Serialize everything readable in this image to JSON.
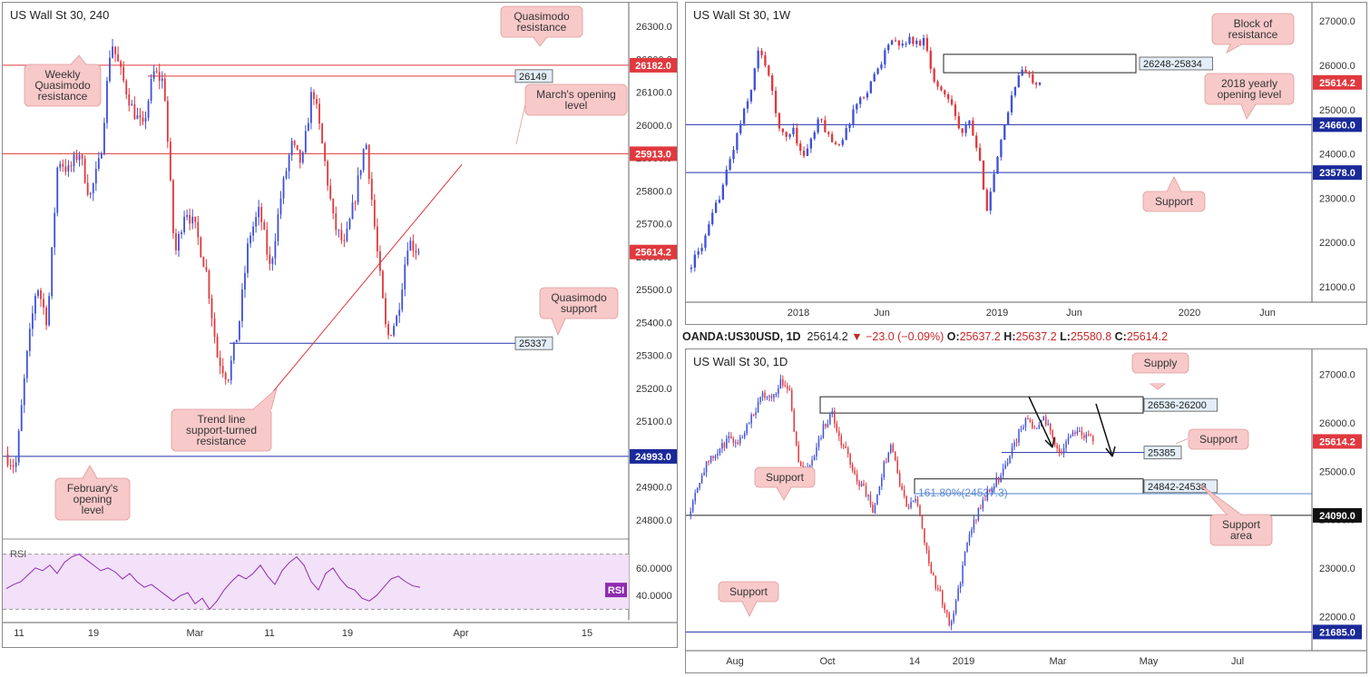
{
  "colors": {
    "up": "#3f51d8",
    "down": "#e0393e",
    "red_line": "#e0393e",
    "blue_line": "#2233aa",
    "callout_bg": "#f8c9c9",
    "callout_border": "#e09a9a",
    "rsi_bg": "#f2e1f8",
    "rsi_line": "#8e2bb0",
    "rsi_badge": "#8e2bb0"
  },
  "header": {
    "symbol": "OANDA:US30USD, 1D",
    "price": "25614.2",
    "change": "−23.0 (−0.09%)",
    "o_label": "O:",
    "o_val": "25637.2",
    "h_label": "H:",
    "h_val": "25637.2",
    "l_label": "L:",
    "l_val": "25580.8",
    "c_label": "C:",
    "c_val": "25614.2"
  },
  "chart_data": [
    {
      "type": "candlestick",
      "title": "US Wall St 30, 240",
      "ylim": [
        24750,
        26350
      ],
      "y_ticks": [
        "26300.0",
        "26200.0",
        "26100.0",
        "26000.0",
        "25900.0",
        "25800.0",
        "25700.0",
        "25600.0",
        "25500.0",
        "25400.0",
        "25300.0",
        "25200.0",
        "25100.0",
        "25000.0",
        "24900.0",
        "24800.0"
      ],
      "x_ticks": [
        "11",
        "19",
        "Mar",
        "11",
        "19",
        "Apr",
        "15"
      ],
      "path": [
        25000,
        24960,
        25280,
        25520,
        25400,
        25900,
        25860,
        25920,
        25780,
        25900,
        26260,
        26150,
        26050,
        25990,
        26160,
        26130,
        25600,
        25750,
        25680,
        25550,
        25300,
        25230,
        25380,
        25660,
        25740,
        25560,
        25780,
        25940,
        25880,
        26120,
        25920,
        25700,
        25630,
        25780,
        25960,
        25640,
        25350,
        25420,
        25650,
        25614
      ],
      "last_price": "25614.2",
      "hlines": [
        {
          "label": "26182.0",
          "value": 26182,
          "style": "red-badge"
        },
        {
          "label": "26149",
          "value": 26149,
          "style": "blue-tag"
        },
        {
          "label": "25913.0",
          "value": 25913,
          "style": "red-badge"
        },
        {
          "label": "25337",
          "value": 25337,
          "style": "blue-tag"
        },
        {
          "label": "24993.0",
          "value": 24993,
          "style": "blue-badge"
        }
      ],
      "annotations": [
        {
          "text": [
            "Quasimodo",
            "resistance"
          ]
        },
        {
          "text": [
            "Weekly",
            "Quasimodo",
            "resistance"
          ]
        },
        {
          "text": [
            "March's opening",
            "level"
          ]
        },
        {
          "text": [
            "Quasimodo",
            "support"
          ]
        },
        {
          "text": [
            "Trend line",
            "support-turned",
            "resistance"
          ]
        },
        {
          "text": [
            "February's",
            "opening",
            "level"
          ]
        }
      ],
      "rsi": {
        "label": "RSI",
        "ylim": [
          25,
          75
        ],
        "y_ticks": [
          "60.0000",
          "40.0000"
        ],
        "band": [
          30,
          70
        ],
        "values": [
          45,
          48,
          50,
          55,
          60,
          58,
          62,
          56,
          64,
          68,
          70,
          66,
          62,
          58,
          60,
          57,
          52,
          56,
          50,
          46,
          48,
          44,
          40,
          36,
          40,
          42,
          34,
          38,
          30,
          36,
          44,
          50,
          55,
          52,
          56,
          62,
          54,
          48,
          58,
          64,
          68,
          62,
          50,
          44,
          56,
          60,
          52,
          46,
          44,
          38,
          36,
          40,
          46,
          52,
          54,
          50,
          47,
          46
        ]
      }
    },
    {
      "type": "candlestick",
      "title": "US Wall St 30, 1W",
      "ylim": [
        20650,
        27250
      ],
      "y_ticks": [
        "27000.0",
        "26000.0",
        "25000.0",
        "24000.0",
        "23000.0",
        "22000.0",
        "21000.0"
      ],
      "x_ticks": [
        "2018",
        "Jun",
        "2019",
        "Jun",
        "2020",
        "Jun"
      ],
      "path": [
        21400,
        21700,
        22100,
        22700,
        23300,
        24000,
        24700,
        25300,
        26300,
        26000,
        24900,
        24300,
        24600,
        23900,
        24300,
        24800,
        24400,
        24200,
        24500,
        25100,
        25300,
        25700,
        26100,
        26600,
        26400,
        26600,
        26500,
        26600,
        25600,
        25400,
        25200,
        24400,
        24700,
        24000,
        22800,
        23700,
        24600,
        25500,
        25900,
        25700,
        25614
      ],
      "last_price": "25614.2",
      "zones": [
        {
          "label": "26248-25834",
          "lo": 25834,
          "hi": 26248
        }
      ],
      "hlines": [
        {
          "label": "24660.0",
          "value": 24660,
          "style": "blue-badge"
        },
        {
          "label": "23578.0",
          "value": 23578,
          "style": "blue-badge"
        }
      ],
      "annotations": [
        {
          "text": [
            "Block of",
            "resistance"
          ]
        },
        {
          "text": [
            "2018 yearly",
            "opening level"
          ]
        },
        {
          "text": [
            "Support"
          ]
        }
      ]
    },
    {
      "type": "candlestick",
      "title": "US Wall St 30, 1D",
      "ylim": [
        21300,
        27400
      ],
      "y_ticks": [
        "27000.0",
        "26000.0",
        "25000.0",
        "24000.0",
        "23000.0",
        "22000.0"
      ],
      "x_ticks": [
        "Aug",
        "Oct",
        "14",
        "2019",
        "Mar",
        "May",
        "Jul"
      ],
      "path": [
        24100,
        24700,
        25100,
        25300,
        25500,
        25700,
        25600,
        26000,
        26300,
        26600,
        26500,
        26900,
        26700,
        25200,
        25000,
        25400,
        25900,
        26200,
        25600,
        25300,
        24800,
        24600,
        24100,
        25000,
        25600,
        24800,
        24200,
        24500,
        23600,
        22800,
        22400,
        21800,
        22500,
        23500,
        24000,
        24400,
        24700,
        24900,
        25300,
        25700,
        26100,
        25900,
        26100,
        25800,
        25400,
        25600,
        25900,
        25700,
        25614
      ],
      "last_price": "25614.2",
      "zones": [
        {
          "label": "26536-26200",
          "lo": 26200,
          "hi": 26536
        },
        {
          "label": "24842-24538",
          "lo": 24538,
          "hi": 24842
        }
      ],
      "fib_label": "161.80%(24537.3)",
      "hlines": [
        {
          "label": "25385",
          "value": 25385,
          "style": "blue-tag"
        },
        {
          "label": "24090.0",
          "value": 24090,
          "style": "black-badge"
        },
        {
          "label": "21685.0",
          "value": 21685,
          "style": "blue-badge"
        }
      ],
      "annotations": [
        {
          "text": [
            "Supply"
          ]
        },
        {
          "text": [
            "Support"
          ]
        },
        {
          "text": [
            "Support"
          ]
        },
        {
          "text": [
            "Support",
            "area"
          ]
        },
        {
          "text": [
            "Support"
          ]
        }
      ]
    }
  ]
}
